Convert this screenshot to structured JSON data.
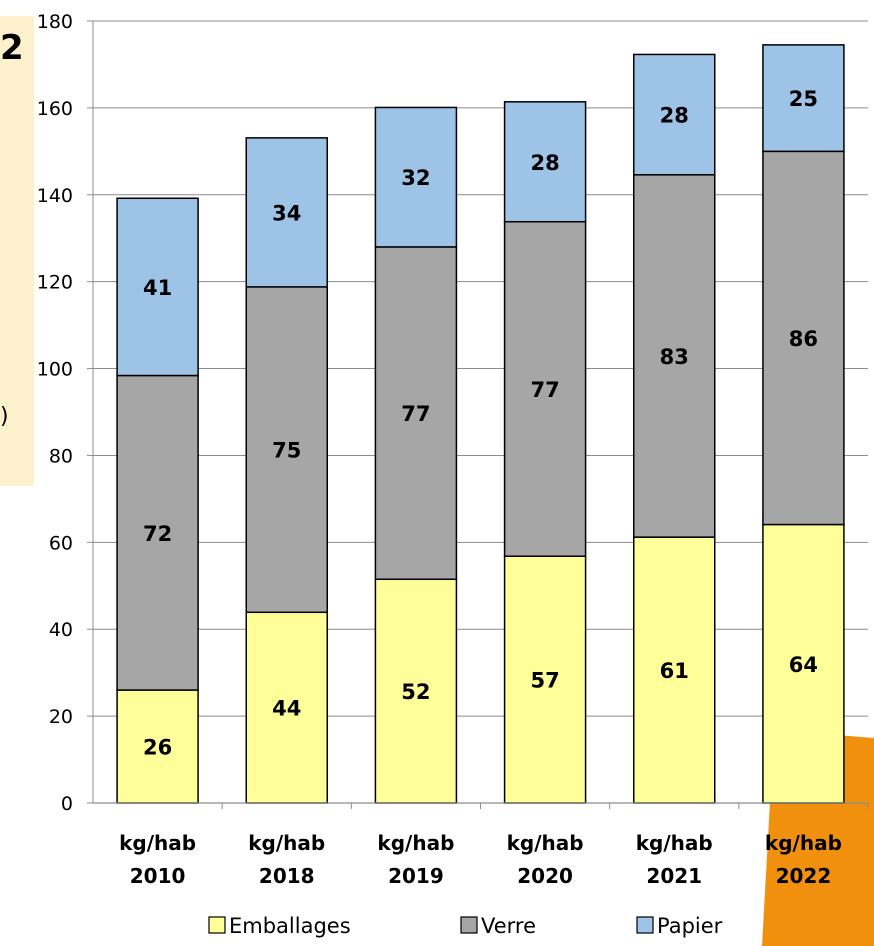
{
  "side_fragments": {
    "top": "2",
    "middle": ")"
  },
  "colors": {
    "emballages": "#ffff99",
    "verre": "#a6a6a6",
    "papier": "#9dc3e6",
    "grid": "#8c8c8c",
    "panel": "#fdf0cc",
    "accent": "#f0900c"
  },
  "chart_data": {
    "type": "bar",
    "stacked": true,
    "title": "",
    "xlabel": "",
    "ylabel": "",
    "ylim": [
      0,
      180
    ],
    "yticks": [
      0,
      20,
      40,
      60,
      80,
      100,
      120,
      140,
      160,
      180
    ],
    "grid": true,
    "legend_position": "bottom",
    "categories": [
      {
        "line1": "kg/hab",
        "line2": "2010"
      },
      {
        "line1": "kg/hab",
        "line2": "2018"
      },
      {
        "line1": "kg/hab",
        "line2": "2019"
      },
      {
        "line1": "kg/hab",
        "line2": "2020"
      },
      {
        "line1": "kg/hab",
        "line2": "2021"
      },
      {
        "line1": "kg/hab",
        "line2": "2022"
      }
    ],
    "series": [
      {
        "name": "Emballages",
        "values": [
          26,
          44,
          52,
          57,
          61,
          64
        ],
        "labels": [
          "26",
          "44",
          "52",
          "57",
          "61",
          "64"
        ],
        "totals_drawn": [
          26,
          43.9,
          51.5,
          56.8,
          61.2,
          64.1
        ]
      },
      {
        "name": "Verre",
        "values": [
          72,
          75,
          77,
          77,
          83,
          86
        ],
        "labels": [
          "72",
          "75",
          "77",
          "77",
          "83",
          "86"
        ],
        "totals_drawn": [
          98.4,
          118.8,
          128,
          133.8,
          144.6,
          150
        ]
      },
      {
        "name": "Papier",
        "values": [
          41,
          34,
          32,
          28,
          28,
          25
        ],
        "labels": [
          "41",
          "34",
          "32",
          "28",
          "28",
          "25"
        ],
        "totals_drawn": [
          139.2,
          153.1,
          160.1,
          161.4,
          172.3,
          174.5
        ]
      }
    ]
  }
}
